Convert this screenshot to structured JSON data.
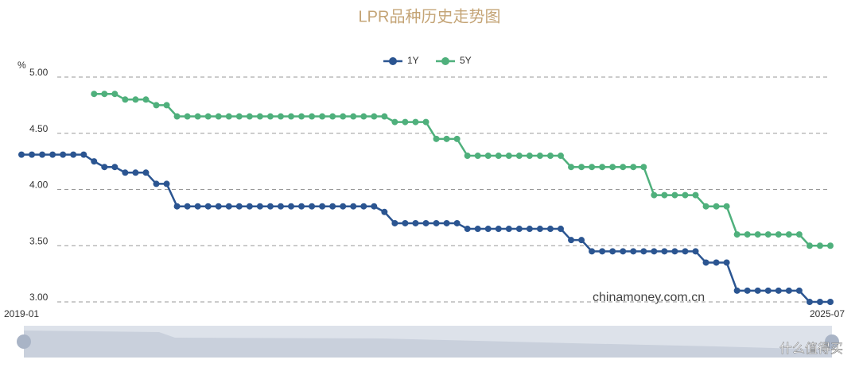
{
  "chart_data": {
    "type": "line",
    "title": "LPR品种历史走势图",
    "y_label": "%",
    "watermark": "chinamoney.com.cn",
    "source_badge": "什么值得买",
    "categories": [
      "2019-01",
      null,
      null,
      null,
      null,
      null,
      null,
      null,
      null,
      null,
      null,
      null,
      null,
      null,
      null,
      null,
      null,
      null,
      null,
      null,
      null,
      null,
      null,
      null,
      null,
      null,
      null,
      null,
      null,
      null,
      null,
      null,
      null,
      null,
      null,
      null,
      null,
      null,
      null,
      null,
      null,
      null,
      null,
      null,
      null,
      null,
      null,
      null,
      null,
      null,
      null,
      null,
      null,
      null,
      null,
      null,
      null,
      null,
      null,
      null,
      null,
      null,
      null,
      null,
      null,
      null,
      null,
      null,
      null,
      null,
      null,
      null,
      null,
      null,
      null,
      null,
      null,
      null,
      "2025-07"
    ],
    "series": [
      {
        "name": "1Y",
        "color": "#2b5591",
        "values": [
          4.31,
          4.31,
          4.31,
          4.31,
          4.31,
          4.31,
          4.31,
          4.25,
          4.2,
          4.2,
          4.15,
          4.15,
          4.15,
          4.05,
          4.05,
          3.85,
          3.85,
          3.85,
          3.85,
          3.85,
          3.85,
          3.85,
          3.85,
          3.85,
          3.85,
          3.85,
          3.85,
          3.85,
          3.85,
          3.85,
          3.85,
          3.85,
          3.85,
          3.85,
          3.85,
          3.8,
          3.7,
          3.7,
          3.7,
          3.7,
          3.7,
          3.7,
          3.7,
          3.65,
          3.65,
          3.65,
          3.65,
          3.65,
          3.65,
          3.65,
          3.65,
          3.65,
          3.65,
          3.55,
          3.55,
          3.45,
          3.45,
          3.45,
          3.45,
          3.45,
          3.45,
          3.45,
          3.45,
          3.45,
          3.45,
          3.45,
          3.35,
          3.35,
          3.35,
          3.1,
          3.1,
          3.1,
          3.1,
          3.1,
          3.1,
          3.1,
          3.0,
          3.0,
          3.0
        ]
      },
      {
        "name": "5Y",
        "color": "#4fb07c",
        "values": [
          null,
          null,
          null,
          null,
          null,
          null,
          null,
          4.85,
          4.85,
          4.85,
          4.8,
          4.8,
          4.8,
          4.75,
          4.75,
          4.65,
          4.65,
          4.65,
          4.65,
          4.65,
          4.65,
          4.65,
          4.65,
          4.65,
          4.65,
          4.65,
          4.65,
          4.65,
          4.65,
          4.65,
          4.65,
          4.65,
          4.65,
          4.65,
          4.65,
          4.65,
          4.6,
          4.6,
          4.6,
          4.6,
          4.45,
          4.45,
          4.45,
          4.3,
          4.3,
          4.3,
          4.3,
          4.3,
          4.3,
          4.3,
          4.3,
          4.3,
          4.3,
          4.2,
          4.2,
          4.2,
          4.2,
          4.2,
          4.2,
          4.2,
          4.2,
          3.95,
          3.95,
          3.95,
          3.95,
          3.95,
          3.85,
          3.85,
          3.85,
          3.6,
          3.6,
          3.6,
          3.6,
          3.6,
          3.6,
          3.6,
          3.5,
          3.5,
          3.5
        ]
      }
    ],
    "ylim": [
      3,
      5
    ],
    "yticks": [
      {
        "value": 3,
        "label": "3.00"
      },
      {
        "value": 3.5,
        "label": "3.50"
      },
      {
        "value": 4,
        "label": "4.00"
      },
      {
        "value": 4.5,
        "label": "4.50"
      },
      {
        "value": 5,
        "label": "5.00"
      }
    ],
    "grid": true
  }
}
